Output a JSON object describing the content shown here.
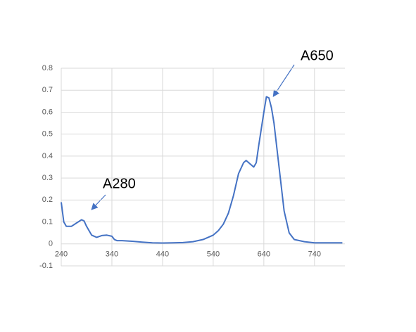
{
  "chart_data": {
    "type": "line",
    "x": [
      240,
      245,
      250,
      260,
      270,
      280,
      285,
      290,
      300,
      310,
      320,
      330,
      340,
      345,
      350,
      360,
      380,
      400,
      420,
      440,
      460,
      480,
      500,
      520,
      540,
      550,
      560,
      570,
      580,
      590,
      600,
      605,
      610,
      620,
      625,
      630,
      640,
      645,
      650,
      655,
      660,
      670,
      680,
      690,
      700,
      720,
      740,
      760,
      780,
      795
    ],
    "values": [
      0.19,
      0.1,
      0.08,
      0.08,
      0.095,
      0.11,
      0.105,
      0.08,
      0.04,
      0.03,
      0.038,
      0.04,
      0.035,
      0.02,
      0.015,
      0.015,
      0.012,
      0.008,
      0.005,
      0.004,
      0.005,
      0.006,
      0.01,
      0.02,
      0.04,
      0.06,
      0.09,
      0.14,
      0.22,
      0.32,
      0.37,
      0.38,
      0.37,
      0.35,
      0.37,
      0.45,
      0.6,
      0.67,
      0.665,
      0.62,
      0.55,
      0.35,
      0.15,
      0.05,
      0.02,
      0.01,
      0.005,
      0.005,
      0.005,
      0.005
    ],
    "color": "#4472c4",
    "xlim": [
      240,
      800
    ],
    "xticks": [
      240,
      340,
      440,
      540,
      640,
      740
    ],
    "ylim": [
      -0.1,
      0.8
    ],
    "yticks": [
      -0.1,
      0,
      0.1,
      0.2,
      0.3,
      0.4,
      0.5,
      0.6,
      0.7,
      0.8
    ],
    "grid": true,
    "annotations": [
      "A280",
      "A650"
    ]
  }
}
